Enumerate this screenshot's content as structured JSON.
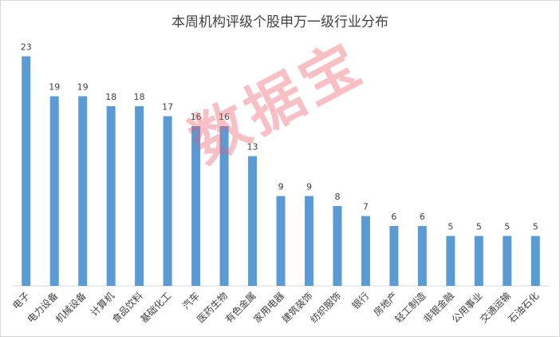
{
  "chart_data": {
    "type": "bar",
    "title": "本周机构评级个股申万一级行业分布",
    "xlabel": "",
    "ylabel": "",
    "categories": [
      "电子",
      "电力设备",
      "机械设备",
      "计算机",
      "食品饮料",
      "基础化工",
      "汽车",
      "医药生物",
      "有色金属",
      "家用电器",
      "建筑装饰",
      "纺织服饰",
      "银行",
      "房地产",
      "轻工制造",
      "非银金融",
      "公用事业",
      "交通运输",
      "石油石化"
    ],
    "values": [
      23,
      19,
      19,
      18,
      18,
      17,
      16,
      16,
      13,
      9,
      9,
      8,
      7,
      6,
      6,
      5,
      5,
      5,
      5
    ],
    "ylim": [
      0,
      24
    ],
    "grid": false,
    "legend": "none",
    "bar_color": "#5b9bd5",
    "data_labels": true
  },
  "watermark": "数据宝",
  "colors": {
    "watermark": "#ec5a64",
    "axis": "#d9d9d9",
    "label_text": "#404040"
  }
}
